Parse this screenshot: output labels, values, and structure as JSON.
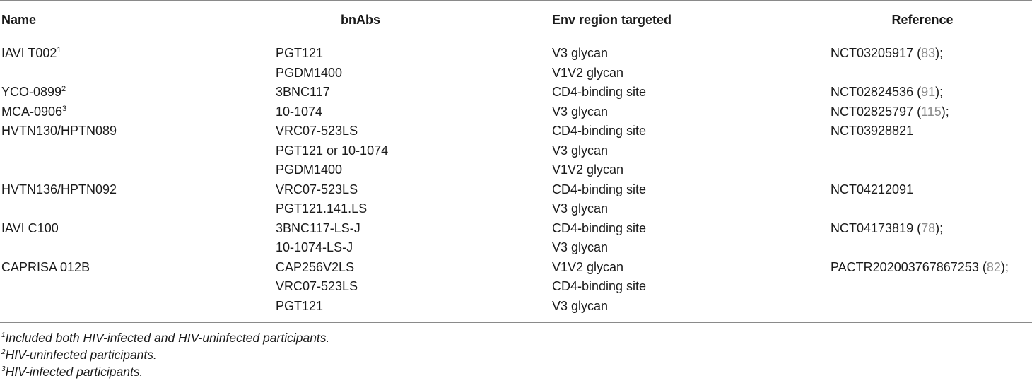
{
  "table": {
    "headers": {
      "name": "Name",
      "bnabs": "bnAbs",
      "env": "Env region targeted",
      "reference": "Reference"
    },
    "rows": [
      {
        "name": "IAVI T002",
        "name_sup": "1",
        "bnab": "PGT121",
        "env": "V3 glycan",
        "ref": "NCT03205917",
        "ref_cite": "83",
        "ref_tail": ");"
      },
      {
        "name": "",
        "name_sup": "",
        "bnab": "PGDM1400",
        "env": "V1V2 glycan",
        "ref": "",
        "ref_cite": "",
        "ref_tail": ""
      },
      {
        "name": "YCO-0899",
        "name_sup": "2",
        "bnab": "3BNC117",
        "env": "CD4-binding site",
        "ref": "NCT02824536",
        "ref_cite": "91",
        "ref_tail": ");"
      },
      {
        "name": "MCA-0906",
        "name_sup": "3",
        "bnab": "10-1074",
        "env": "V3 glycan",
        "ref": "NCT02825797",
        "ref_cite": "115",
        "ref_tail": ");"
      },
      {
        "name": "HVTN130/HPTN089",
        "name_sup": "",
        "bnab": "VRC07-523LS",
        "env": "CD4-binding site",
        "ref": "NCT03928821",
        "ref_cite": "",
        "ref_tail": ""
      },
      {
        "name": "",
        "name_sup": "",
        "bnab": "PGT121 or 10-1074",
        "env": "V3 glycan",
        "ref": "",
        "ref_cite": "",
        "ref_tail": ""
      },
      {
        "name": "",
        "name_sup": "",
        "bnab": "PGDM1400",
        "env": "V1V2 glycan",
        "ref": "",
        "ref_cite": "",
        "ref_tail": ""
      },
      {
        "name": "HVTN136/HPTN092",
        "name_sup": "",
        "bnab": "VRC07-523LS",
        "env": "CD4-binding site",
        "ref": "NCT04212091",
        "ref_cite": "",
        "ref_tail": ""
      },
      {
        "name": "",
        "name_sup": "",
        "bnab": "PGT121.141.LS",
        "env": "V3 glycan",
        "ref": "",
        "ref_cite": "",
        "ref_tail": ""
      },
      {
        "name": "IAVI C100",
        "name_sup": "",
        "bnab": "3BNC117-LS-J",
        "env": "CD4-binding site",
        "ref": "NCT04173819",
        "ref_cite": "78",
        "ref_tail": ");"
      },
      {
        "name": "",
        "name_sup": "",
        "bnab": "10-1074-LS-J",
        "env": "V3 glycan",
        "ref": "",
        "ref_cite": "",
        "ref_tail": ""
      },
      {
        "name": "CAPRISA 012B",
        "name_sup": "",
        "bnab": "CAP256V2LS",
        "env": "V1V2 glycan",
        "ref": "PACTR202003767867253",
        "ref_cite": "82",
        "ref_tail": ");"
      },
      {
        "name": "",
        "name_sup": "",
        "bnab": "VRC07-523LS",
        "env": "CD4-binding site",
        "ref": "",
        "ref_cite": "",
        "ref_tail": ""
      },
      {
        "name": "",
        "name_sup": "",
        "bnab": "PGT121",
        "env": "V3 glycan",
        "ref": "",
        "ref_cite": "",
        "ref_tail": ""
      }
    ]
  },
  "footnotes": [
    {
      "sup": "1",
      "text": "Included both HIV-infected and HIV-uninfected participants."
    },
    {
      "sup": "2",
      "text": "HIV-uninfected participants."
    },
    {
      "sup": "3",
      "text": "HIV-infected participants."
    }
  ],
  "colors": {
    "text": "#1a1a1a",
    "citation": "#8a8a8a",
    "rule": "#8a8a8a"
  }
}
